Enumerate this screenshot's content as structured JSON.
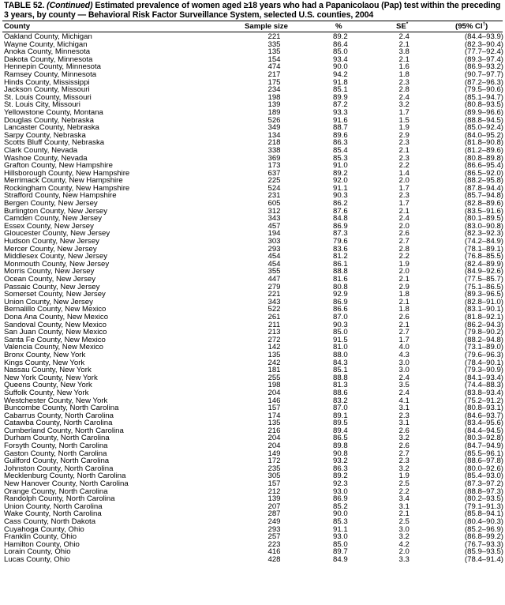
{
  "title": {
    "label": "TABLE 52.",
    "continued": "(Continued)",
    "text": "Estimated prevalence of women aged ≥18 years who had a Papanicolaou (Pap) test within the preceding 3 years, by county — Behavioral Risk Factor Surveillance System, selected U.S. counties, 2004"
  },
  "columns": {
    "county": "County",
    "sample_size": "Sample size",
    "percent": "%",
    "se": "SE",
    "se_mark": "*",
    "ci": "(95% CI",
    "ci_mark": "†",
    "ci_close": ")"
  },
  "rows": [
    [
      "Oakland County, Michigan",
      "221",
      "89.2",
      "2.4",
      "(84.4–93.9)"
    ],
    [
      "Wayne County, Michigan",
      "335",
      "86.4",
      "2.1",
      "(82.3–90.4)"
    ],
    [
      "Anoka County, Minnesota",
      "135",
      "85.0",
      "3.8",
      "(77.7–92.4)"
    ],
    [
      "Dakota County, Minnesota",
      "154",
      "93.4",
      "2.1",
      "(89.3–97.4)"
    ],
    [
      "Hennepin County, Minnesota",
      "474",
      "90.0",
      "1.6",
      "(86.9–93.2)"
    ],
    [
      "Ramsey County, Minnesota",
      "217",
      "94.2",
      "1.8",
      "(90.7–97.7)"
    ],
    [
      "Hinds County, Mississippi",
      "175",
      "91.8",
      "2.3",
      "(87.2–96.3)"
    ],
    [
      "Jackson County, Missouri",
      "234",
      "85.1",
      "2.8",
      "(79.5–90.6)"
    ],
    [
      "St. Louis County, Missouri",
      "198",
      "89.9",
      "2.4",
      "(85.1–94.7)"
    ],
    [
      "St. Louis City, Missouri",
      "139",
      "87.2",
      "3.2",
      "(80.8–93.5)"
    ],
    [
      "Yellowstone County, Montana",
      "189",
      "93.3",
      "1.7",
      "(89.9–96.6)"
    ],
    [
      "Douglas County, Nebraska",
      "526",
      "91.6",
      "1.5",
      "(88.8–94.5)"
    ],
    [
      "Lancaster County, Nebraska",
      "349",
      "88.7",
      "1.9",
      "(85.0–92.4)"
    ],
    [
      "Sarpy County, Nebraska",
      "134",
      "89.6",
      "2.9",
      "(84.0–95.2)"
    ],
    [
      "Scotts Bluff County, Nebraska",
      "218",
      "86.3",
      "2.3",
      "(81.8–90.8)"
    ],
    [
      "Clark County, Nevada",
      "338",
      "85.4",
      "2.1",
      "(81.2–89.6)"
    ],
    [
      "Washoe County, Nevada",
      "369",
      "85.3",
      "2.3",
      "(80.8–89.8)"
    ],
    [
      "Grafton County, New Hampshire",
      "173",
      "91.0",
      "2.2",
      "(86.6–95.4)"
    ],
    [
      "Hillsborough County, New Hampshire",
      "637",
      "89.2",
      "1.4",
      "(86.5–92.0)"
    ],
    [
      "Merrimack County, New Hampshire",
      "225",
      "92.0",
      "2.0",
      "(88.2–95.8)"
    ],
    [
      "Rockingham County, New Hampshire",
      "524",
      "91.1",
      "1.7",
      "(87.8–94.4)"
    ],
    [
      "Strafford County, New Hampshire",
      "231",
      "90.3",
      "2.3",
      "(85.7–94.8)"
    ],
    [
      "Bergen County, New Jersey",
      "605",
      "86.2",
      "1.7",
      "(82.8–89.6)"
    ],
    [
      "Burlington County, New Jersey",
      "312",
      "87.6",
      "2.1",
      "(83.5–91.6)"
    ],
    [
      "Camden County, New Jersey",
      "343",
      "84.8",
      "2.4",
      "(80.1–89.5)"
    ],
    [
      "Essex County, New Jersey",
      "457",
      "86.9",
      "2.0",
      "(83.0–90.8)"
    ],
    [
      "Gloucester County, New Jersey",
      "194",
      "87.3",
      "2.6",
      "(82.3–92.3)"
    ],
    [
      "Hudson County, New Jersey",
      "303",
      "79.6",
      "2.7",
      "(74.2–84.9)"
    ],
    [
      "Mercer County, New Jersey",
      "293",
      "83.6",
      "2.8",
      "(78.1–89.1)"
    ],
    [
      "Middlesex County, New Jersey",
      "454",
      "81.2",
      "2.2",
      "(76.8–85.5)"
    ],
    [
      "Monmouth County, New Jersey",
      "454",
      "86.1",
      "1.9",
      "(82.4–89.9)"
    ],
    [
      "Morris County, New Jersey",
      "355",
      "88.8",
      "2.0",
      "(84.9–92.6)"
    ],
    [
      "Ocean County, New Jersey",
      "447",
      "81.6",
      "2.1",
      "(77.5–85.7)"
    ],
    [
      "Passaic County, New Jersey",
      "279",
      "80.8",
      "2.9",
      "(75.1–86.5)"
    ],
    [
      "Somerset County, New Jersey",
      "221",
      "92.9",
      "1.8",
      "(89.3–96.5)"
    ],
    [
      "Union County, New Jersey",
      "343",
      "86.9",
      "2.1",
      "(82.8–91.0)"
    ],
    [
      "Bernalillo County, New Mexico",
      "522",
      "86.6",
      "1.8",
      "(83.1–90.1)"
    ],
    [
      "Dona Ana County, New Mexico",
      "261",
      "87.0",
      "2.6",
      "(81.8–92.1)"
    ],
    [
      "Sandoval County, New Mexico",
      "211",
      "90.3",
      "2.1",
      "(86.2–94.3)"
    ],
    [
      "San Juan County, New Mexico",
      "213",
      "85.0",
      "2.7",
      "(79.8–90.2)"
    ],
    [
      "Santa Fe County, New Mexico",
      "272",
      "91.5",
      "1.7",
      "(88.2–94.8)"
    ],
    [
      "Valencia County, New Mexico",
      "142",
      "81.0",
      "4.0",
      "(73.1–89.0)"
    ],
    [
      "Bronx County, New York",
      "135",
      "88.0",
      "4.3",
      "(79.6–96.3)"
    ],
    [
      "Kings County, New York",
      "242",
      "84.3",
      "3.0",
      "(78.4–90.1)"
    ],
    [
      "Nassau County, New York",
      "181",
      "85.1",
      "3.0",
      "(79.3–90.9)"
    ],
    [
      "New York County, New York",
      "255",
      "88.8",
      "2.4",
      "(84.1–93.4)"
    ],
    [
      "Queens County, New York",
      "198",
      "81.3",
      "3.5",
      "(74.4–88.3)"
    ],
    [
      "Suffolk County, New York",
      "204",
      "88.6",
      "2.4",
      "(83.8–93.4)"
    ],
    [
      "Westchester County, New York",
      "146",
      "83.2",
      "4.1",
      "(75.2–91.2)"
    ],
    [
      "Buncombe County, North Carolina",
      "157",
      "87.0",
      "3.1",
      "(80.8–93.1)"
    ],
    [
      "Cabarrus County, North Carolina",
      "174",
      "89.1",
      "2.3",
      "(84.6–93.7)"
    ],
    [
      "Catawba County, North Carolina",
      "135",
      "89.5",
      "3.1",
      "(83.4–95.6)"
    ],
    [
      "Cumberland County, North Carolina",
      "216",
      "89.4",
      "2.6",
      "(84.4–94.5)"
    ],
    [
      "Durham County, North Carolina",
      "204",
      "86.5",
      "3.2",
      "(80.3–92.8)"
    ],
    [
      "Forsyth County, North Carolina",
      "204",
      "89.8",
      "2.6",
      "(84.7–94.9)"
    ],
    [
      "Gaston County, North Carolina",
      "149",
      "90.8",
      "2.7",
      "(85.5–96.1)"
    ],
    [
      "Guilford County, North Carolina",
      "172",
      "93.2",
      "2.3",
      "(88.6–97.8)"
    ],
    [
      "Johnston County, North Carolina",
      "235",
      "86.3",
      "3.2",
      "(80.0–92.6)"
    ],
    [
      "Mecklenburg County, North Carolina",
      "305",
      "89.2",
      "1.9",
      "(85.4–93.0)"
    ],
    [
      "New Hanover County, North Carolina",
      "157",
      "92.3",
      "2.5",
      "(87.3–97.2)"
    ],
    [
      "Orange County, North Carolina",
      "212",
      "93.0",
      "2.2",
      "(88.8–97.3)"
    ],
    [
      "Randolph County, North Carolina",
      "139",
      "86.9",
      "3.4",
      "(80.2–93.5)"
    ],
    [
      "Union County, North Carolina",
      "207",
      "85.2",
      "3.1",
      "(79.1–91.3)"
    ],
    [
      "Wake County, North Carolina",
      "287",
      "90.0",
      "2.1",
      "(85.8–94.1)"
    ],
    [
      "Cass County, North Dakota",
      "249",
      "85.3",
      "2.5",
      "(80.4–90.3)"
    ],
    [
      "Cuyahoga County, Ohio",
      "293",
      "91.1",
      "3.0",
      "(85.2–96.9)"
    ],
    [
      "Franklin County, Ohio",
      "257",
      "93.0",
      "3.2",
      "(86.8–99.2)"
    ],
    [
      "Hamilton County, Ohio",
      "223",
      "85.0",
      "4.2",
      "(76.7–93.3)"
    ],
    [
      "Lorain County, Ohio",
      "416",
      "89.7",
      "2.0",
      "(85.9–93.5)"
    ],
    [
      "Lucas County, Ohio",
      "428",
      "84.9",
      "3.3",
      "(78.4–91.4)"
    ]
  ]
}
